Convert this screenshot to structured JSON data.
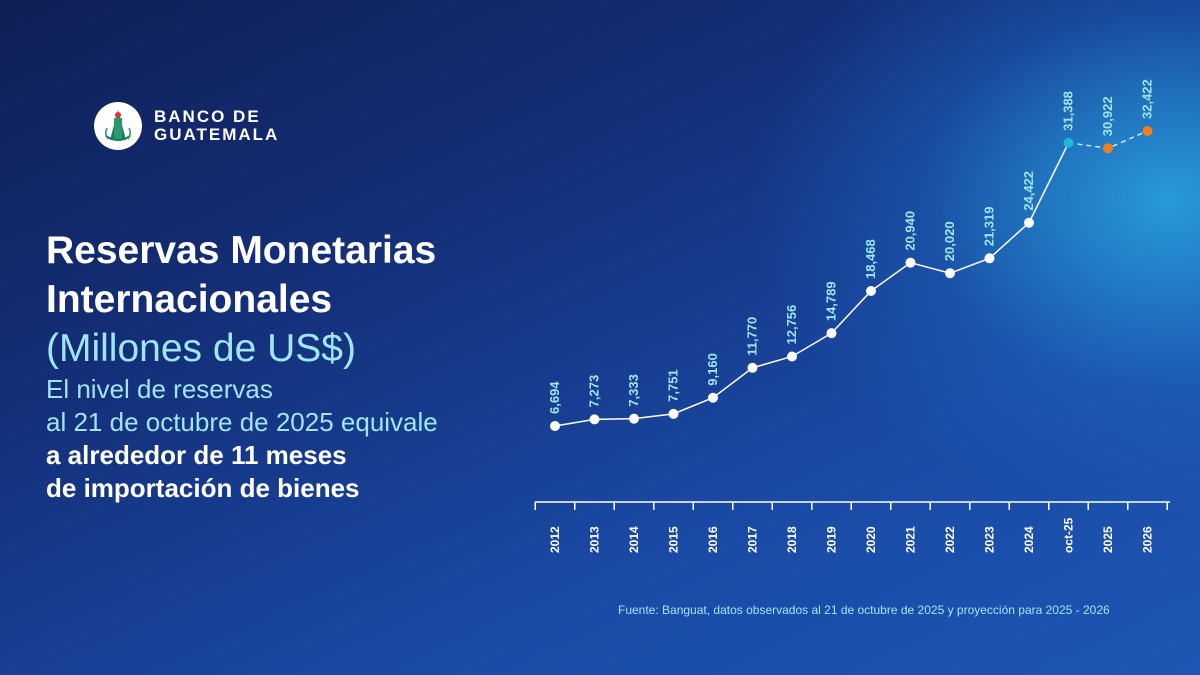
{
  "brand": {
    "line1": "BANCO DE",
    "line2": "GUATEMALA",
    "emblem_icon": "guatemala-emblem-icon"
  },
  "headline": {
    "title_line1": "Reservas Monetarias",
    "title_line2": "Internacionales",
    "subtitle": "(Millones de US$)",
    "text_line1": "El nivel de reservas",
    "text_line2": "al 21 de octubre de 2025 equivale",
    "text_bold_line1": "a alrededor de 11 meses",
    "text_bold_line2": "de importación de bienes"
  },
  "source": "Fuente: Banguat, datos observados al 21 de octubre de 2025 y proyección para 2025 - 2026",
  "chart_data": {
    "type": "line",
    "categories": [
      "2012",
      "2013",
      "2014",
      "2015",
      "2016",
      "2017",
      "2018",
      "2019",
      "2020",
      "2021",
      "2022",
      "2023",
      "2024",
      "oct-25",
      "2025",
      "2026"
    ],
    "values": [
      6694,
      7273,
      7333,
      7751,
      9160,
      11770,
      12756,
      14789,
      18468,
      20940,
      20020,
      21319,
      24422,
      31388,
      30922,
      32422
    ],
    "labels": [
      "6,694",
      "7,273",
      "7,333",
      "7,751",
      "9,160",
      "11,770",
      "12,756",
      "14,789",
      "18,468",
      "20,940",
      "20,020",
      "21,319",
      "24,422",
      "31,388",
      "30,922",
      "32,422"
    ],
    "observed_count": 14,
    "title": "Reservas Monetarias Internacionales",
    "ylabel": "Millones de US$",
    "xlabel": "",
    "ylim": [
      6000,
      33000
    ],
    "grid": false,
    "colors": {
      "observed_line": "#ffffff",
      "observed_point": "#ffffff",
      "latest_observed_point": "#1fb8d8",
      "projection_line": "#cfe8ff",
      "projection_point": "#f07d1e",
      "axis": "#ffffff",
      "value_label": "#9fe6f5",
      "category_label": "#ffffff"
    }
  }
}
